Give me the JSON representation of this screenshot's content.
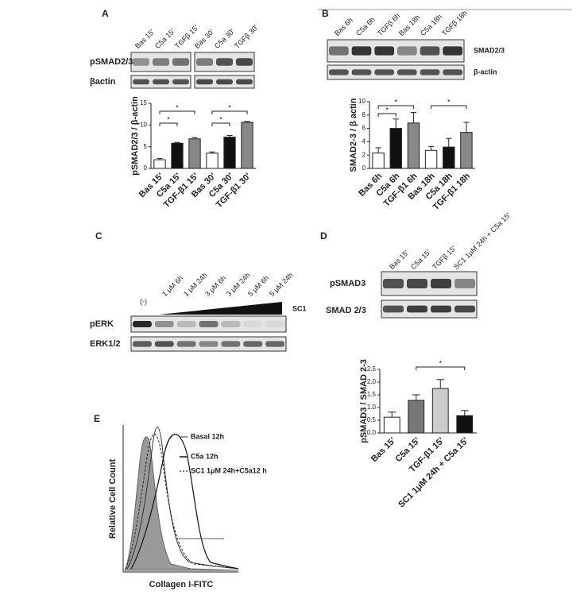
{
  "panels": {
    "a": {
      "label": "A",
      "lanes": [
        "Bas 15'",
        "C5a 15'",
        "TGFβ 15'",
        "Bas 30'",
        "C5a 30'",
        "TGFβ 30'"
      ],
      "blot_labels": [
        "pSMAD2/3",
        "βactin"
      ]
    },
    "b": {
      "label": "B",
      "lanes": [
        "Bas 6h",
        "C5a 6h",
        "TGFβ 6h",
        "Bas 18h",
        "C5a 18h",
        "TGFβ 18h"
      ],
      "blot_labels": [
        "SMAD2/3",
        "β-actin"
      ]
    },
    "c": {
      "label": "C",
      "lanes": [
        "(-)",
        "1 μM 6h",
        "1 μM 24h",
        "3 μM 6h",
        "3 μM 24h",
        "5 μM 6h",
        "5 μM 24h"
      ],
      "treatment": "SC1",
      "blot_labels": [
        "pERK",
        "ERK1/2"
      ]
    },
    "d": {
      "label": "D",
      "lanes": [
        "Bas 15'",
        "C5a 15'",
        "TGFβ 15'",
        "SC1 1μM 24h + C5a 15'"
      ],
      "blot_labels": [
        "pSMAD3",
        "SMAD 2/3"
      ]
    },
    "e": {
      "label": "E",
      "ylabel": "Relative Cell Count",
      "xlabel": "Collagen I-FITC",
      "legend": [
        "Basal 12h",
        "C5a 12h",
        "SC1 1μM 24h+C5a12 h"
      ]
    }
  },
  "chart_data": [
    {
      "type": "bar",
      "ylabel": "pSMAD2/3 / β-actin",
      "categories": [
        "Bas 15'",
        "C5a 15'",
        "TGF-β1 15'",
        "Bas 30'",
        "C5a 30'",
        "TGF-β1 30'"
      ],
      "values": [
        2,
        5.8,
        6.8,
        3.5,
        7.2,
        10.6
      ],
      "errors": [
        0.3,
        0.2,
        0.3,
        0.3,
        0.4,
        0.2
      ],
      "colors": [
        "#ffffff",
        "#111111",
        "#888888",
        "#ffffff",
        "#111111",
        "#888888"
      ],
      "ylim": [
        0,
        15
      ],
      "yticks": [
        0,
        5,
        10,
        15
      ],
      "annotations": [
        "*",
        "*",
        "*",
        "*"
      ]
    },
    {
      "type": "bar",
      "ylabel": "SMAD2-3 / β actin",
      "categories": [
        "Bas 6h",
        "C5a 6h",
        "TGF-β1 6h",
        "Bas 18h",
        "C5a 18h",
        "TGF-β1 18h"
      ],
      "values": [
        2.3,
        6,
        6.8,
        2.7,
        3.2,
        5.4
      ],
      "errors": [
        0.8,
        1.4,
        1.6,
        0.6,
        1.3,
        1.5
      ],
      "colors": [
        "#ffffff",
        "#111111",
        "#888888",
        "#ffffff",
        "#111111",
        "#888888"
      ],
      "ylim": [
        0,
        10
      ],
      "yticks": [
        0,
        2,
        4,
        6,
        8,
        10
      ],
      "annotations": [
        "*",
        "*",
        "*"
      ]
    },
    {
      "type": "bar",
      "ylabel": "pSMAD3 / SMAD 2-3",
      "categories": [
        "Bas 15'",
        "C5a 15'",
        "TGF-β1 15'",
        "SC1 1μM 24h + C5a 15'"
      ],
      "values": [
        0.62,
        1.28,
        1.75,
        0.68
      ],
      "errors": [
        0.2,
        0.22,
        0.35,
        0.2
      ],
      "colors": [
        "#ffffff",
        "#777777",
        "#cccccc",
        "#111111"
      ],
      "ylim": [
        0,
        2.5
      ],
      "yticks": [
        {
          "value": 0,
          "label": "0.0"
        },
        {
          "value": 0.5,
          "label": "0.5"
        },
        {
          "value": 1,
          "label": "1.0"
        },
        {
          "value": 1.5,
          "label": "1.5"
        },
        {
          "value": 2,
          "label": "2.0"
        },
        {
          "value": 2.5,
          "label": "2.5"
        }
      ],
      "annotations": [
        "*"
      ]
    }
  ]
}
